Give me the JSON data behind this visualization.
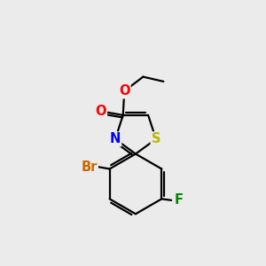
{
  "background_color": "#ebebeb",
  "bond_color": "#000000",
  "bond_width": 1.6,
  "atom_colors": {
    "S": "#b8b800",
    "N": "#0000ff",
    "O": "#ff0000",
    "Br": "#cc6600",
    "F": "#008800",
    "C": "#000000"
  },
  "font_size": 10.5,
  "fig_size": [
    3.0,
    3.0
  ],
  "dpi": 100,
  "xlim": [
    0,
    10
  ],
  "ylim": [
    0,
    10
  ]
}
